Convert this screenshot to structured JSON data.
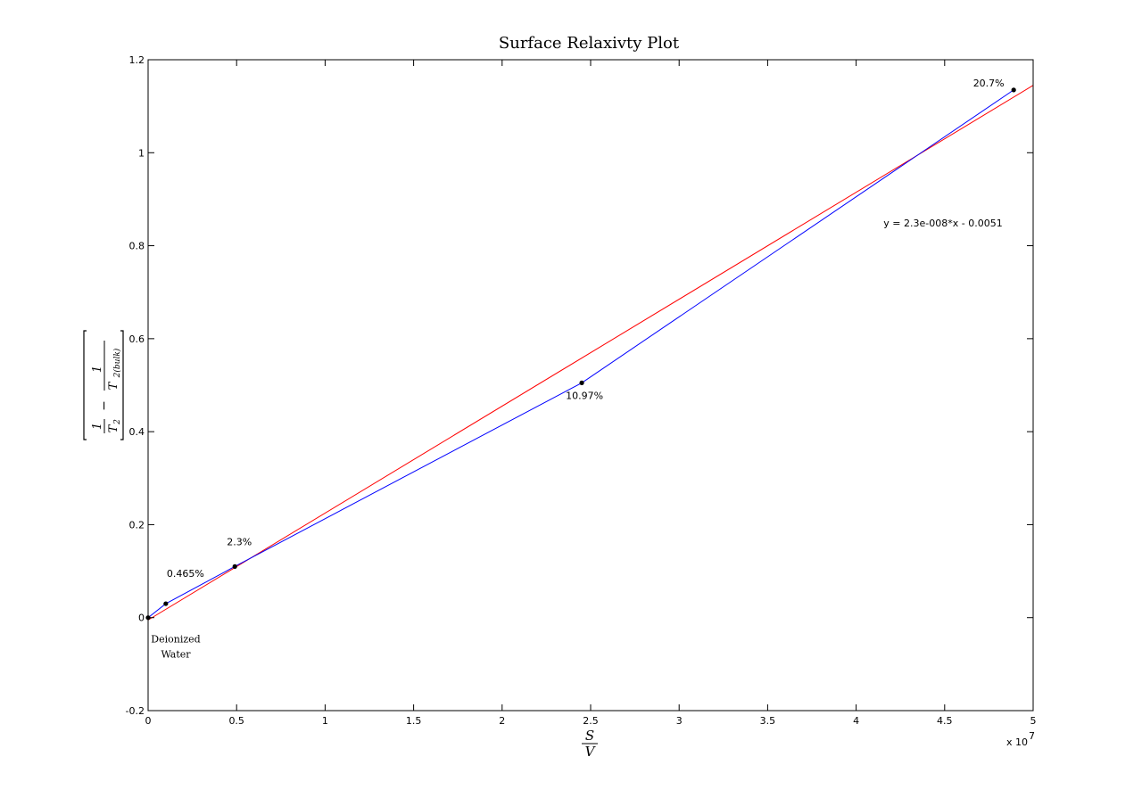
{
  "chart_data": {
    "type": "line",
    "title": "Surface Relaxivty Plot",
    "xlabel_numerator": "S",
    "xlabel_denominator": "V",
    "ylabel": {
      "term1_num": "1",
      "term1_den": "T",
      "term1_sub": "2",
      "term2_num": "1",
      "term2_den": "T",
      "term2_sub": "2(bulk)",
      "operator": "−"
    },
    "x_multiplier": "x 10",
    "x_multiplier_exp": "7",
    "xlim": [
      0,
      50000000
    ],
    "ylim": [
      -0.2,
      1.2
    ],
    "x_ticks": [
      0,
      0.5,
      1,
      1.5,
      2,
      2.5,
      3,
      3.5,
      4,
      4.5,
      5
    ],
    "x_tick_labels": [
      "0",
      "0.5",
      "1",
      "1.5",
      "2",
      "2.5",
      "3",
      "3.5",
      "4",
      "4.5",
      "5"
    ],
    "y_ticks": [
      -0.2,
      0,
      0.2,
      0.4,
      0.6,
      0.8,
      1,
      1.2
    ],
    "y_tick_labels": [
      "-0.2",
      "0",
      "0.2",
      "0.4",
      "0.6",
      "0.8",
      "1",
      "1.2"
    ],
    "grid": false,
    "series": [
      {
        "color": "#0000ff",
        "markers": true,
        "x": [
          0,
          1000000,
          4900000,
          24500000,
          48900000
        ],
        "y": [
          0,
          0.03,
          0.11,
          0.505,
          1.135
        ]
      },
      {
        "color": "#ff0000",
        "markers": false,
        "x": [
          0,
          50000000
        ],
        "y": [
          -0.0051,
          1.1449
        ]
      }
    ],
    "point_labels": [
      "Deionized Water",
      "0.465%",
      "2.3%",
      "10.97%",
      "20.7%"
    ],
    "fit_equation": "y = 2.3e-008*x - 0.0051"
  }
}
